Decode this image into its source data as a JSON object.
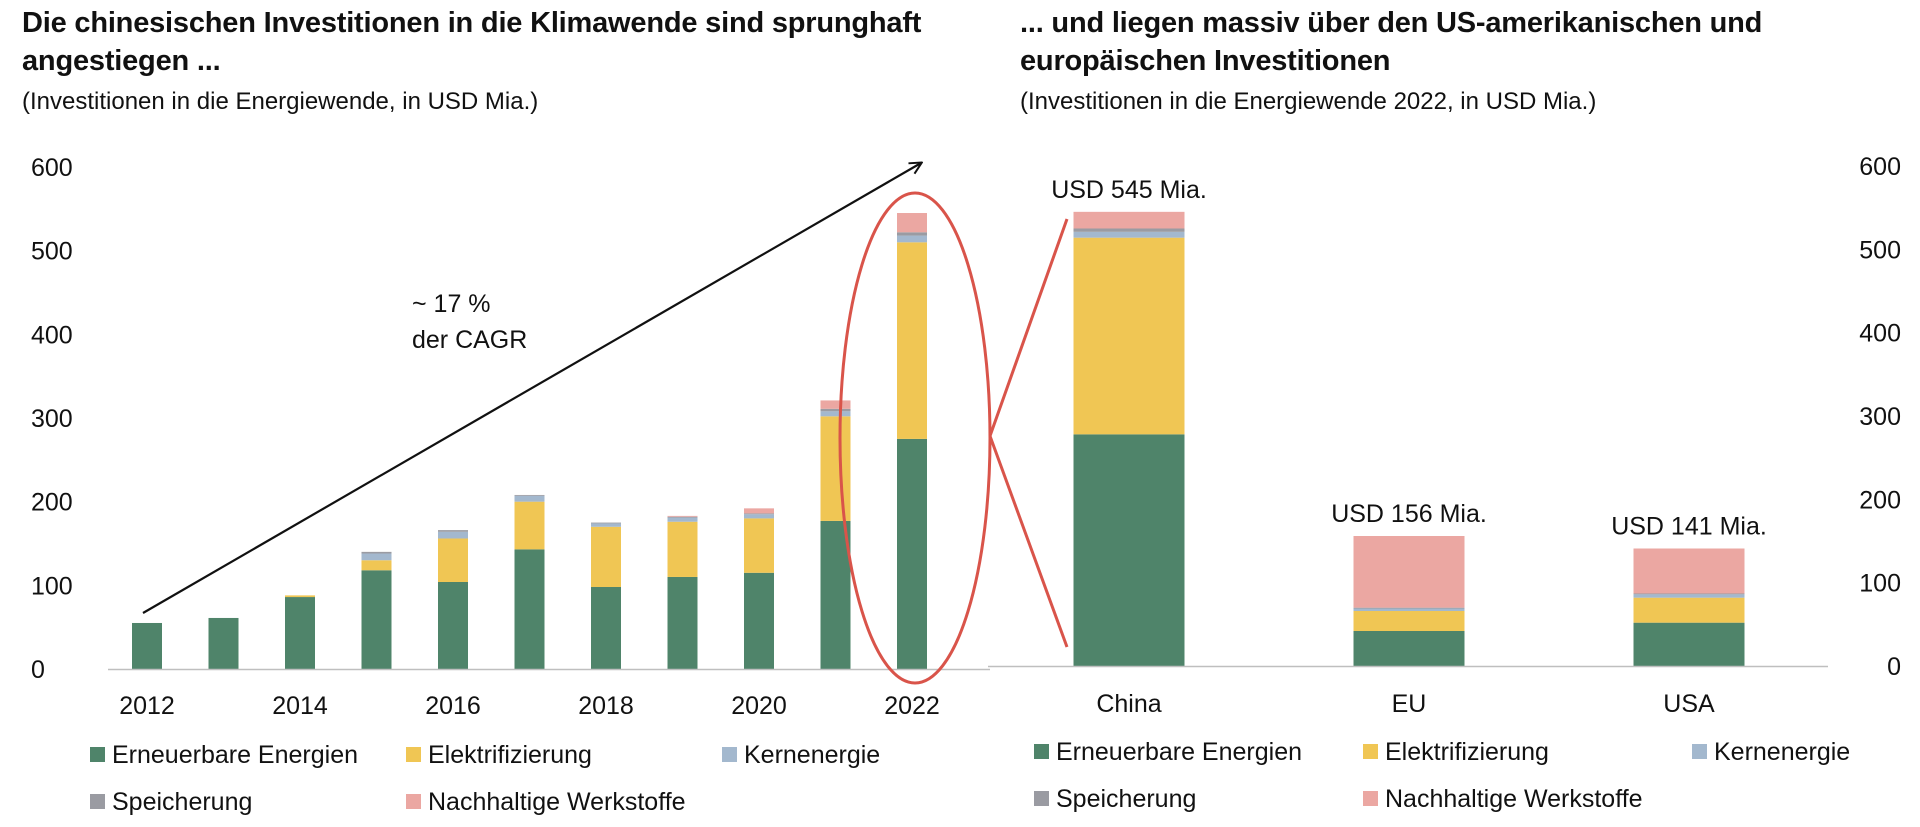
{
  "colors": {
    "Erneuerbare Energien": "#4f846a",
    "Elektrifizierung": "#f0c654",
    "Kernenergie": "#a3b8ce",
    "Speicherung": "#9a9ba2",
    "Nachhaltige Werkstoffe": "#eba7a2",
    "highlight": "#d9544a",
    "axis": "#bfbfbf"
  },
  "left": {
    "title": "Die chinesischen Investitionen in die Klimawende sind sprunghaft angestiegen ...",
    "subtitle": "(Investitionen in die Energiewende, in USD Mia.)",
    "annotation_line1": "~ 17 %",
    "annotation_line2": "der CAGR"
  },
  "right": {
    "title": "... und liegen massiv über den US-amerikanischen und europäischen Investitionen",
    "subtitle": "(Investitionen in die Energiewende 2022, in USD Mia.)"
  },
  "chart_data": [
    {
      "type": "bar",
      "stacked": true,
      "categories": [
        "2012",
        "2013",
        "2014",
        "2015",
        "2016",
        "2017",
        "2018",
        "2019",
        "2020",
        "2021",
        "2022"
      ],
      "x_tick_labels": [
        "2012",
        "2014",
        "2016",
        "2018",
        "2020",
        "2022"
      ],
      "series": [
        {
          "name": "Erneuerbare Energien",
          "values": [
            55,
            61,
            86,
            118,
            104,
            143,
            98,
            110,
            115,
            177,
            275
          ]
        },
        {
          "name": "Elektrifizierung",
          "values": [
            0,
            0,
            2,
            12,
            52,
            57,
            72,
            66,
            65,
            125,
            235
          ]
        },
        {
          "name": "Kernenergie",
          "values": [
            0,
            0,
            0,
            8,
            8,
            7,
            4,
            5,
            5,
            6,
            8
          ]
        },
        {
          "name": "Speicherung",
          "values": [
            0,
            0,
            0,
            2,
            2,
            1,
            1,
            1,
            1,
            3,
            4
          ]
        },
        {
          "name": "Nachhaltige Werkstoffe",
          "values": [
            0,
            0,
            0,
            0,
            0,
            0,
            0,
            1,
            6,
            10,
            23
          ]
        }
      ],
      "ylim": [
        0,
        600
      ],
      "yticks": [
        0,
        100,
        200,
        300,
        400,
        500,
        600
      ],
      "y_axis_side": "left",
      "legend_placement": "bottom",
      "grid": false
    },
    {
      "type": "bar",
      "stacked": true,
      "categories": [
        "China",
        "EU",
        "USA"
      ],
      "series": [
        {
          "name": "Erneuerbare Energien",
          "values": [
            278,
            42,
            52
          ]
        },
        {
          "name": "Elektrifizierung",
          "values": [
            236,
            24,
            30
          ]
        },
        {
          "name": "Kernenergie",
          "values": [
            7,
            3,
            4
          ]
        },
        {
          "name": "Speicherung",
          "values": [
            4,
            1,
            1
          ]
        },
        {
          "name": "Nachhaltige Werkstoffe",
          "values": [
            20,
            86,
            54
          ]
        }
      ],
      "totals_labels": [
        "USD 545 Mia.",
        "USD 156 Mia.",
        "USD 141 Mia."
      ],
      "ylim": [
        0,
        600
      ],
      "yticks": [
        0,
        100,
        200,
        300,
        400,
        500,
        600
      ],
      "y_axis_side": "right",
      "legend_placement": "bottom",
      "grid": false
    }
  ]
}
